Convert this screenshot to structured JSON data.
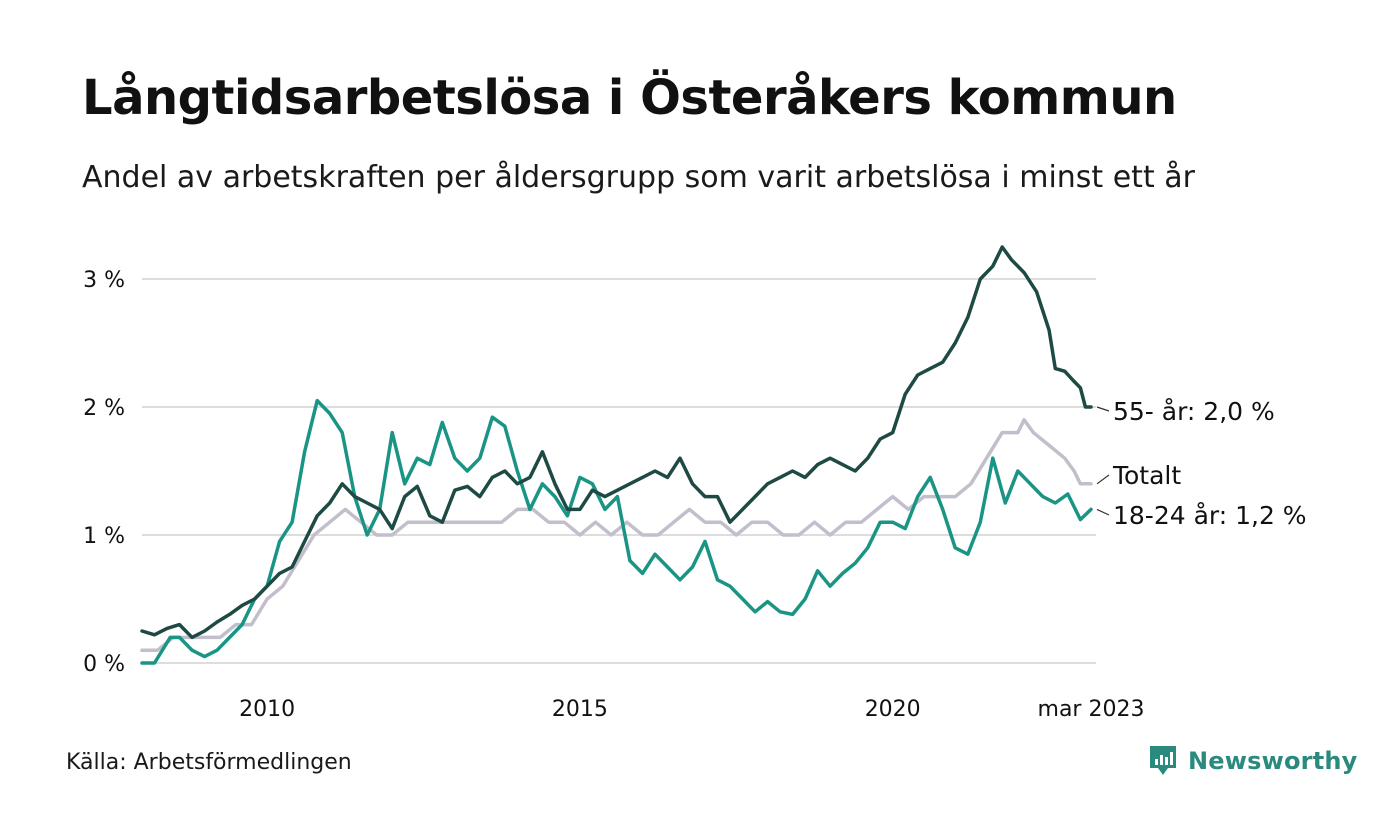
{
  "header": {
    "title": "Långtidsarbetslösa i Österåkers kommun",
    "subtitle": "Andel av arbetskraften per åldersgrupp som varit arbetslösa i minst ett år"
  },
  "footer": {
    "source": "Källa: Arbetsförmedlingen",
    "brand": "Newsworthy"
  },
  "colors": {
    "series_55": "#1f4a44",
    "series_totalt": "#c2bfcc",
    "series_18_24": "#1a9484",
    "grid": "#dddddd",
    "brand": "#2a8a7e"
  },
  "chart_data": {
    "type": "line",
    "title": "Långtidsarbetslösa i Österåkers kommun",
    "subtitle": "Andel av arbetskraften per åldersgrupp som varit arbetslösa i minst ett år",
    "xlim": [
      2008.0,
      2023.25
    ],
    "ylim": [
      0,
      3.3
    ],
    "y_ticks": [
      0,
      1,
      2,
      3
    ],
    "y_tick_labels": [
      "0 %",
      "1 %",
      "2 %",
      "3 %"
    ],
    "x_ticks": [
      2010,
      2015,
      2020,
      2023.17
    ],
    "x_tick_labels": [
      "2010",
      "2015",
      "2020",
      "mar 2023"
    ],
    "grid": "horizontal",
    "legend": "end-labels",
    "series": [
      {
        "key": "totalt",
        "name": "Totalt",
        "end_label": "Totalt",
        "points": [
          [
            2008.0,
            0.1
          ],
          [
            2008.25,
            0.1
          ],
          [
            2008.5,
            0.2
          ],
          [
            2008.75,
            0.2
          ],
          [
            2009.0,
            0.2
          ],
          [
            2009.25,
            0.2
          ],
          [
            2009.5,
            0.3
          ],
          [
            2009.75,
            0.3
          ],
          [
            2010.0,
            0.5
          ],
          [
            2010.25,
            0.6
          ],
          [
            2010.5,
            0.8
          ],
          [
            2010.75,
            1.0
          ],
          [
            2011.0,
            1.1
          ],
          [
            2011.25,
            1.2
          ],
          [
            2011.5,
            1.1
          ],
          [
            2011.75,
            1.0
          ],
          [
            2012.0,
            1.0
          ],
          [
            2012.25,
            1.1
          ],
          [
            2012.5,
            1.1
          ],
          [
            2012.75,
            1.1
          ],
          [
            2013.0,
            1.1
          ],
          [
            2013.25,
            1.1
          ],
          [
            2013.5,
            1.1
          ],
          [
            2013.75,
            1.1
          ],
          [
            2014.0,
            1.2
          ],
          [
            2014.25,
            1.2
          ],
          [
            2014.5,
            1.1
          ],
          [
            2014.75,
            1.1
          ],
          [
            2015.0,
            1.0
          ],
          [
            2015.25,
            1.1
          ],
          [
            2015.5,
            1.0
          ],
          [
            2015.75,
            1.1
          ],
          [
            2016.0,
            1.0
          ],
          [
            2016.25,
            1.0
          ],
          [
            2016.5,
            1.1
          ],
          [
            2016.75,
            1.2
          ],
          [
            2017.0,
            1.1
          ],
          [
            2017.25,
            1.1
          ],
          [
            2017.5,
            1.0
          ],
          [
            2017.75,
            1.1
          ],
          [
            2018.0,
            1.1
          ],
          [
            2018.25,
            1.0
          ],
          [
            2018.5,
            1.0
          ],
          [
            2018.75,
            1.1
          ],
          [
            2019.0,
            1.0
          ],
          [
            2019.25,
            1.1
          ],
          [
            2019.5,
            1.1
          ],
          [
            2019.75,
            1.2
          ],
          [
            2020.0,
            1.3
          ],
          [
            2020.25,
            1.2
          ],
          [
            2020.5,
            1.3
          ],
          [
            2020.75,
            1.3
          ],
          [
            2021.0,
            1.3
          ],
          [
            2021.25,
            1.4
          ],
          [
            2021.5,
            1.6
          ],
          [
            2021.75,
            1.8
          ],
          [
            2022.0,
            1.8
          ],
          [
            2022.1,
            1.9
          ],
          [
            2022.25,
            1.8
          ],
          [
            2022.5,
            1.7
          ],
          [
            2022.75,
            1.6
          ],
          [
            2022.9,
            1.5
          ],
          [
            2023.0,
            1.4
          ],
          [
            2023.17,
            1.4
          ]
        ]
      },
      {
        "key": "18-24",
        "name": "18-24 år",
        "end_label": "18-24 år: 1,2 %",
        "points": [
          [
            2008.0,
            0.0
          ],
          [
            2008.2,
            0.0
          ],
          [
            2008.45,
            0.2
          ],
          [
            2008.6,
            0.2
          ],
          [
            2008.8,
            0.1
          ],
          [
            2009.0,
            0.05
          ],
          [
            2009.2,
            0.1
          ],
          [
            2009.4,
            0.2
          ],
          [
            2009.6,
            0.3
          ],
          [
            2009.8,
            0.5
          ],
          [
            2010.0,
            0.6
          ],
          [
            2010.2,
            0.95
          ],
          [
            2010.4,
            1.1
          ],
          [
            2010.6,
            1.65
          ],
          [
            2010.8,
            2.05
          ],
          [
            2011.0,
            1.95
          ],
          [
            2011.2,
            1.8
          ],
          [
            2011.4,
            1.3
          ],
          [
            2011.6,
            1.0
          ],
          [
            2011.8,
            1.2
          ],
          [
            2012.0,
            1.8
          ],
          [
            2012.2,
            1.4
          ],
          [
            2012.4,
            1.6
          ],
          [
            2012.6,
            1.55
          ],
          [
            2012.8,
            1.88
          ],
          [
            2013.0,
            1.6
          ],
          [
            2013.2,
            1.5
          ],
          [
            2013.4,
            1.6
          ],
          [
            2013.6,
            1.92
          ],
          [
            2013.8,
            1.85
          ],
          [
            2014.0,
            1.5
          ],
          [
            2014.2,
            1.2
          ],
          [
            2014.4,
            1.4
          ],
          [
            2014.6,
            1.3
          ],
          [
            2014.8,
            1.15
          ],
          [
            2015.0,
            1.45
          ],
          [
            2015.2,
            1.4
          ],
          [
            2015.4,
            1.2
          ],
          [
            2015.6,
            1.3
          ],
          [
            2015.8,
            0.8
          ],
          [
            2016.0,
            0.7
          ],
          [
            2016.2,
            0.85
          ],
          [
            2016.4,
            0.75
          ],
          [
            2016.6,
            0.65
          ],
          [
            2016.8,
            0.75
          ],
          [
            2017.0,
            0.95
          ],
          [
            2017.2,
            0.65
          ],
          [
            2017.4,
            0.6
          ],
          [
            2017.6,
            0.5
          ],
          [
            2017.8,
            0.4
          ],
          [
            2018.0,
            0.48
          ],
          [
            2018.2,
            0.4
          ],
          [
            2018.4,
            0.38
          ],
          [
            2018.6,
            0.5
          ],
          [
            2018.8,
            0.72
          ],
          [
            2019.0,
            0.6
          ],
          [
            2019.2,
            0.7
          ],
          [
            2019.4,
            0.78
          ],
          [
            2019.6,
            0.9
          ],
          [
            2019.8,
            1.1
          ],
          [
            2020.0,
            1.1
          ],
          [
            2020.2,
            1.05
          ],
          [
            2020.4,
            1.3
          ],
          [
            2020.6,
            1.45
          ],
          [
            2020.8,
            1.2
          ],
          [
            2021.0,
            0.9
          ],
          [
            2021.2,
            0.85
          ],
          [
            2021.4,
            1.1
          ],
          [
            2021.6,
            1.6
          ],
          [
            2021.8,
            1.25
          ],
          [
            2022.0,
            1.5
          ],
          [
            2022.2,
            1.4
          ],
          [
            2022.4,
            1.3
          ],
          [
            2022.6,
            1.25
          ],
          [
            2022.8,
            1.32
          ],
          [
            2023.0,
            1.12
          ],
          [
            2023.17,
            1.2
          ]
        ]
      },
      {
        "key": "55-",
        "name": "55- år",
        "end_label": "55- år: 2,0 %",
        "points": [
          [
            2008.0,
            0.25
          ],
          [
            2008.2,
            0.22
          ],
          [
            2008.4,
            0.27
          ],
          [
            2008.6,
            0.3
          ],
          [
            2008.8,
            0.2
          ],
          [
            2009.0,
            0.25
          ],
          [
            2009.2,
            0.32
          ],
          [
            2009.4,
            0.38
          ],
          [
            2009.6,
            0.45
          ],
          [
            2009.8,
            0.5
          ],
          [
            2010.0,
            0.6
          ],
          [
            2010.2,
            0.7
          ],
          [
            2010.4,
            0.75
          ],
          [
            2010.6,
            0.95
          ],
          [
            2010.8,
            1.15
          ],
          [
            2011.0,
            1.25
          ],
          [
            2011.2,
            1.4
          ],
          [
            2011.4,
            1.3
          ],
          [
            2011.6,
            1.25
          ],
          [
            2011.8,
            1.2
          ],
          [
            2012.0,
            1.05
          ],
          [
            2012.2,
            1.3
          ],
          [
            2012.4,
            1.38
          ],
          [
            2012.6,
            1.15
          ],
          [
            2012.8,
            1.1
          ],
          [
            2013.0,
            1.35
          ],
          [
            2013.2,
            1.38
          ],
          [
            2013.4,
            1.3
          ],
          [
            2013.6,
            1.45
          ],
          [
            2013.8,
            1.5
          ],
          [
            2014.0,
            1.4
          ],
          [
            2014.2,
            1.45
          ],
          [
            2014.4,
            1.65
          ],
          [
            2014.6,
            1.4
          ],
          [
            2014.8,
            1.2
          ],
          [
            2015.0,
            1.2
          ],
          [
            2015.2,
            1.35
          ],
          [
            2015.4,
            1.3
          ],
          [
            2015.6,
            1.35
          ],
          [
            2015.8,
            1.4
          ],
          [
            2016.0,
            1.45
          ],
          [
            2016.2,
            1.5
          ],
          [
            2016.4,
            1.45
          ],
          [
            2016.6,
            1.6
          ],
          [
            2016.8,
            1.4
          ],
          [
            2017.0,
            1.3
          ],
          [
            2017.2,
            1.3
          ],
          [
            2017.4,
            1.1
          ],
          [
            2017.6,
            1.2
          ],
          [
            2017.8,
            1.3
          ],
          [
            2018.0,
            1.4
          ],
          [
            2018.2,
            1.45
          ],
          [
            2018.4,
            1.5
          ],
          [
            2018.6,
            1.45
          ],
          [
            2018.8,
            1.55
          ],
          [
            2019.0,
            1.6
          ],
          [
            2019.2,
            1.55
          ],
          [
            2019.4,
            1.5
          ],
          [
            2019.6,
            1.6
          ],
          [
            2019.8,
            1.75
          ],
          [
            2020.0,
            1.8
          ],
          [
            2020.2,
            2.1
          ],
          [
            2020.4,
            2.25
          ],
          [
            2020.6,
            2.3
          ],
          [
            2020.8,
            2.35
          ],
          [
            2021.0,
            2.5
          ],
          [
            2021.2,
            2.7
          ],
          [
            2021.4,
            3.0
          ],
          [
            2021.6,
            3.1
          ],
          [
            2021.75,
            3.25
          ],
          [
            2021.9,
            3.15
          ],
          [
            2022.1,
            3.05
          ],
          [
            2022.3,
            2.9
          ],
          [
            2022.5,
            2.6
          ],
          [
            2022.6,
            2.3
          ],
          [
            2022.75,
            2.28
          ],
          [
            2022.9,
            2.2
          ],
          [
            2023.0,
            2.15
          ],
          [
            2023.08,
            2.0
          ],
          [
            2023.17,
            2.0
          ]
        ]
      }
    ]
  }
}
